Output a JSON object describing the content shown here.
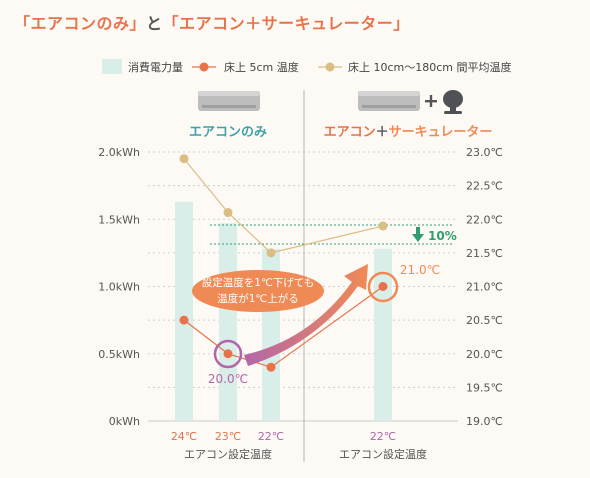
{
  "title": {
    "open1": "「",
    "part1": "エアコンのみ",
    "close1": "」",
    "conj": "と",
    "open2": "「",
    "part2a": "エアコン",
    "plus": "＋",
    "part2b": "サーキュレーター",
    "close2": "」"
  },
  "legend": {
    "bar": "消費電力量",
    "floor": "床上 5cm 温度",
    "avg": "床上 10cm〜180cm 間平均温度"
  },
  "groups": {
    "left": "エアコンのみ",
    "right_a": "エアコン",
    "right_plus": "＋",
    "right_b": "サーキュレーター"
  },
  "xlabels": {
    "left": "エアコン設定温度",
    "right": "エアコン設定温度"
  },
  "annotation": {
    "line1": "設定温度を1℃下げても",
    "line2": "温度が1℃上がる",
    "reduction": "10%",
    "low_temp": "20.0℃",
    "high_temp": "21.0℃"
  },
  "colors": {
    "bar": "#d9ede9",
    "floor": "#e8734a",
    "avg": "#d9bd82",
    "green": "#2f9e6e",
    "purple": "#b266a8",
    "teal": "#3aa2a8",
    "orange": "#f08a55"
  },
  "chart_data": {
    "type": "bar+line",
    "categories": [
      "24℃",
      "23℃",
      "22℃",
      "22℃"
    ],
    "y_left": {
      "ticks": [
        "0kWh",
        "0.5kWh",
        "1.0kWh",
        "1.5kWh",
        "2.0kWh"
      ],
      "ylim": [
        0,
        2.0
      ],
      "unit": "kWh"
    },
    "y_right": {
      "ticks": [
        "19.0℃",
        "19.5℃",
        "20.0℃",
        "20.5℃",
        "21.0℃",
        "21.5℃",
        "22.0℃",
        "22.5℃",
        "23.0℃"
      ],
      "ylim": [
        19.0,
        23.0
      ],
      "unit": "℃"
    },
    "series": [
      {
        "name": "消費電力量",
        "kind": "bar",
        "axis": "left",
        "values": [
          1.63,
          1.47,
          1.28,
          1.28
        ]
      },
      {
        "name": "床上 5cm 温度",
        "kind": "line",
        "axis": "right",
        "values": [
          20.5,
          20.0,
          19.8,
          21.0
        ]
      },
      {
        "name": "床上 10cm〜180cm 間平均温度",
        "kind": "line",
        "axis": "right",
        "values": [
          22.9,
          22.1,
          21.5,
          21.9
        ]
      }
    ]
  }
}
